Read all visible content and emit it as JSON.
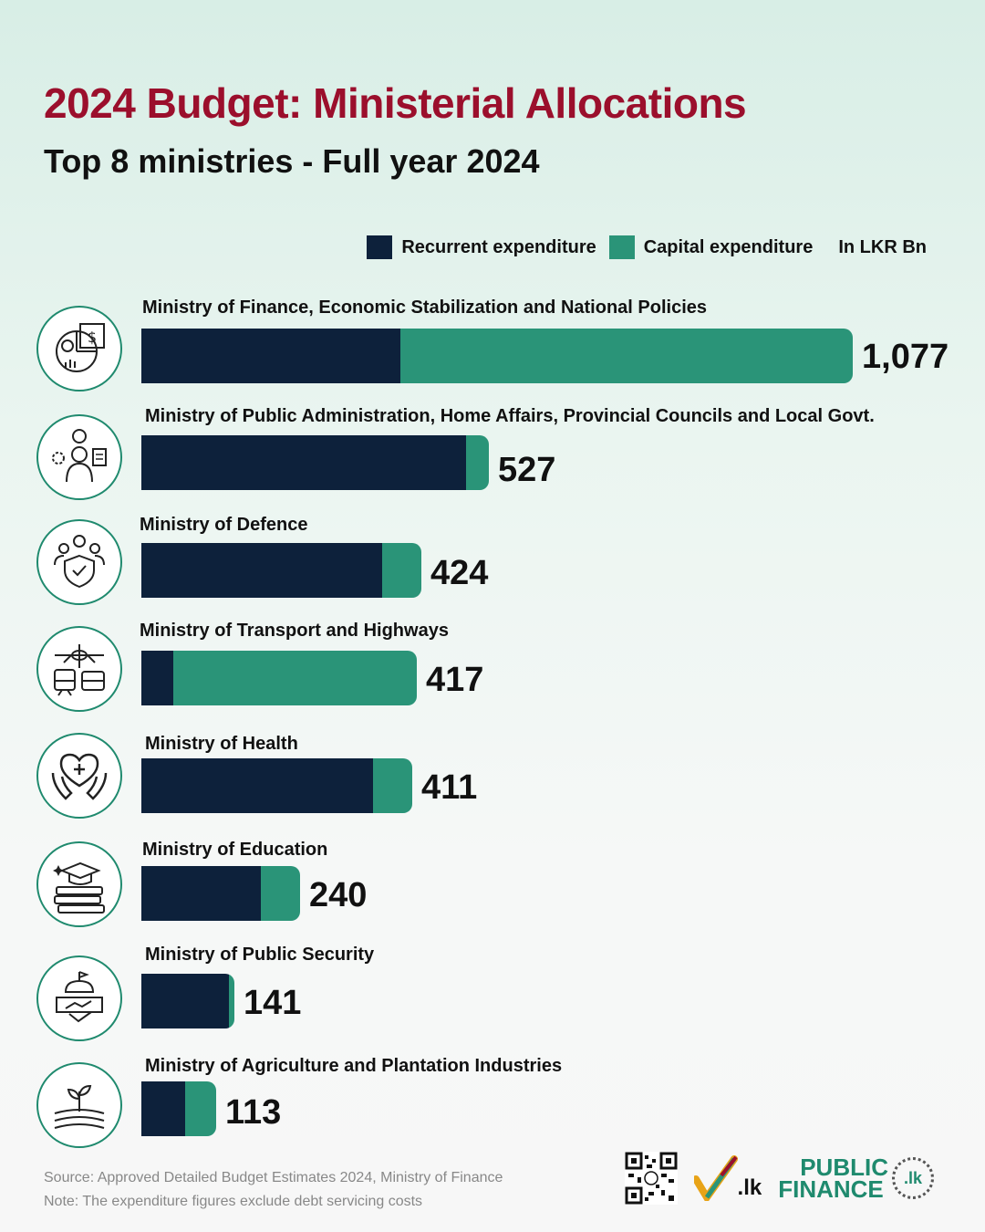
{
  "header": {
    "title": "2024 Budget: Ministerial Allocations",
    "subtitle": "Top 8 ministries - Full year 2024"
  },
  "legend": {
    "recurrent": "Recurrent expenditure",
    "capital": "Capital expenditure",
    "unit": "In LKR Bn",
    "recurrent_color": "#0d213b",
    "capital_color": "#2a9478"
  },
  "chart_data": {
    "type": "bar",
    "orientation": "horizontal",
    "stacked": true,
    "title": "2024 Budget: Ministerial Allocations",
    "subtitle": "Top 8 ministries - Full year 2024",
    "unit": "In LKR Bn",
    "categories": [
      "Ministry of Finance, Economic Stabilization and National Policies",
      "Ministry of Public Administration, Home Affairs, Provincial Councils and Local Govt.",
      "Ministry of Defence",
      "Ministry of Transport and Highways",
      "Ministry of Health",
      "Ministry of Education",
      "Ministry of Public Security",
      "Ministry of Agriculture and Plantation Industries"
    ],
    "totals": [
      "1,077",
      "527",
      "424",
      "417",
      "411",
      "240",
      "141",
      "113"
    ],
    "total_values": [
      1077,
      527,
      424,
      417,
      411,
      240,
      141,
      113
    ],
    "series": [
      {
        "name": "Recurrent expenditure",
        "values": [
          392,
          492,
          364,
          48,
          351,
          181,
          133,
          66
        ]
      },
      {
        "name": "Capital expenditure",
        "values": [
          685,
          35,
          60,
          369,
          60,
          59,
          8,
          47
        ]
      }
    ],
    "icons": [
      "finance-icon",
      "administration-icon",
      "defence-icon",
      "transport-icon",
      "health-icon",
      "education-icon",
      "security-icon",
      "agriculture-icon"
    ]
  },
  "footer": {
    "source": "Source: Approved Detailed Budget Estimates 2024, Ministry of Finance",
    "note": "Note: The expenditure figures exclude debt servicing costs",
    "logo_manthri": ".lk",
    "logo_pf_line1": "PUBLIC",
    "logo_pf_line2": "FINANCE",
    "logo_pf_badge": ".lk"
  }
}
